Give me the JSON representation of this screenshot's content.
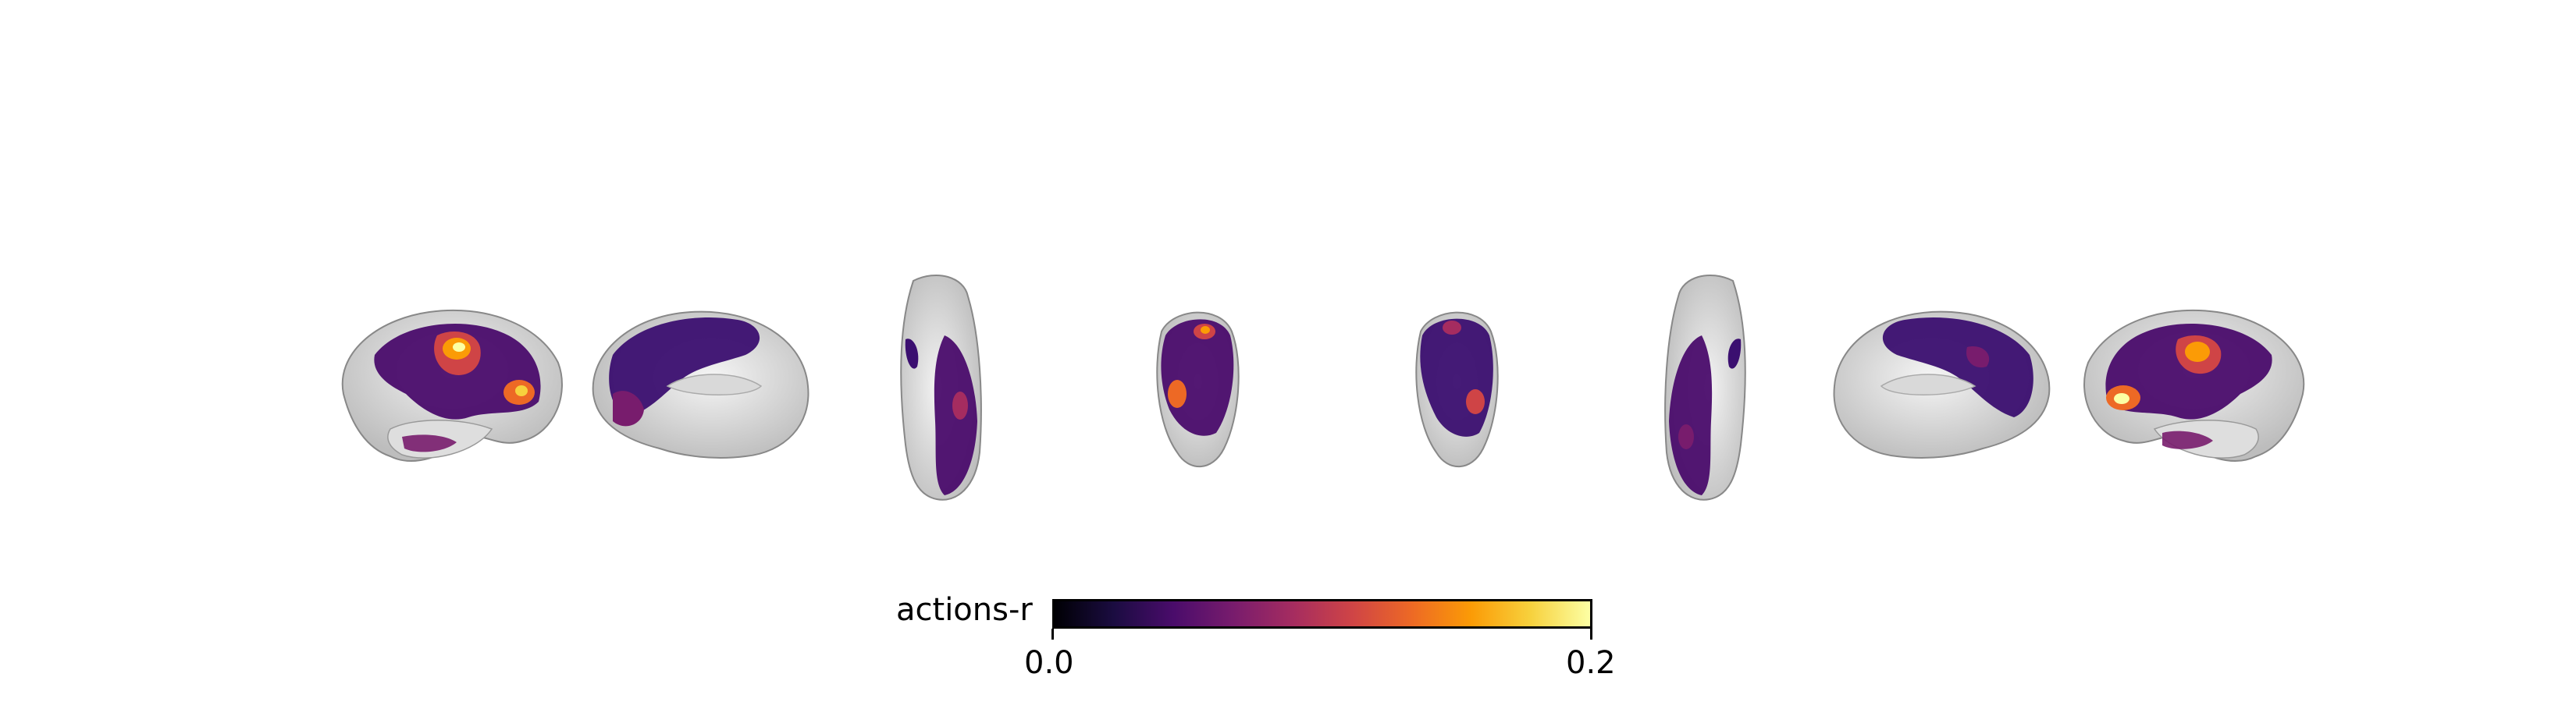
{
  "figure": {
    "views": [
      {
        "name": "left-lateral",
        "hemisphere": "left",
        "orientation": "lateral"
      },
      {
        "name": "left-medial",
        "hemisphere": "left",
        "orientation": "medial"
      },
      {
        "name": "left-dorsal",
        "hemisphere": "left",
        "orientation": "dorsal"
      },
      {
        "name": "left-anterior",
        "hemisphere": "left",
        "orientation": "anterior"
      },
      {
        "name": "right-anterior",
        "hemisphere": "right",
        "orientation": "anterior"
      },
      {
        "name": "right-dorsal",
        "hemisphere": "right",
        "orientation": "dorsal"
      },
      {
        "name": "right-medial",
        "hemisphere": "right",
        "orientation": "medial"
      },
      {
        "name": "right-lateral",
        "hemisphere": "right",
        "orientation": "lateral"
      }
    ]
  },
  "colorbar": {
    "label": "actions-r",
    "min_label": "0.0",
    "max_label": "0.2",
    "min_value": 0.0,
    "max_value": 0.2,
    "colormap": "inferno",
    "stops": [
      "#000004",
      "#1b0c41",
      "#4a0c6b",
      "#781c6d",
      "#a52c60",
      "#cf4446",
      "#ed6925",
      "#fb9b06",
      "#f7d13d",
      "#fcffa4"
    ]
  },
  "colors": {
    "surface": "#e6e6e6",
    "surface_shade": "#bdbdbd",
    "overlay_dark": "#3b0f70",
    "overlay_mid": "#8c2981",
    "overlay_hot": "#f8765c",
    "overlay_bright": "#fcbf49"
  }
}
